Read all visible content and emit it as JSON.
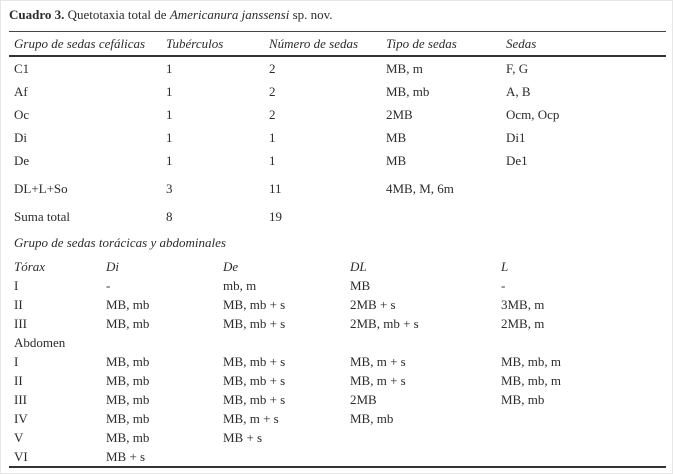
{
  "colors": {
    "text": "#2b2b2b",
    "rule": "#333333",
    "background": "#ffffff"
  },
  "caption": {
    "label": "Cuadro 3.",
    "text": " Quetotaxia total de ",
    "species": "Americanura janssensi",
    "suffix": " sp. nov."
  },
  "cephalic_table": {
    "headers": [
      "Grupo de sedas cefálicas",
      "Tubérculos",
      "Número de sedas",
      "Tipo de sedas",
      "Sedas"
    ],
    "rows": [
      {
        "cells": [
          "C1",
          "1",
          "2",
          "MB, m",
          "F, G"
        ]
      },
      {
        "cells": [
          "Af",
          "1",
          "2",
          "MB, mb",
          "A, B"
        ]
      },
      {
        "cells": [
          "Oc",
          "1",
          "2",
          "2MB",
          "Ocm, Ocp"
        ]
      },
      {
        "cells": [
          "Di",
          "1",
          "1",
          "MB",
          "Di1"
        ]
      },
      {
        "cells": [
          "De",
          "1",
          "1",
          "MB",
          "De1"
        ]
      },
      {
        "cells": [
          "DL+L+So",
          "3",
          "11",
          "4MB, M, 6m",
          ""
        ],
        "gap": true
      },
      {
        "cells": [
          "Suma total",
          "8",
          "19",
          "",
          ""
        ],
        "gap": true
      }
    ]
  },
  "section2_title": "Grupo de sedas torácicas y abdominales",
  "thoracic_abdominal_table": {
    "headers": [
      "Tórax",
      "Di",
      "De",
      "DL",
      "L"
    ],
    "rows": [
      {
        "cells": [
          "I",
          "-",
          "mb, m",
          "MB",
          "-"
        ]
      },
      {
        "cells": [
          "II",
          "MB, mb",
          "MB, mb + s",
          "2MB + s",
          "3MB, m"
        ]
      },
      {
        "cells": [
          "III",
          "MB, mb",
          "MB, mb + s",
          "2MB, mb + s",
          "2MB, m"
        ]
      },
      {
        "cells": [
          "Abdomen",
          "",
          "",
          "",
          ""
        ]
      },
      {
        "cells": [
          "I",
          "MB, mb",
          "MB, mb + s",
          "MB, m + s",
          "MB, mb, m"
        ]
      },
      {
        "cells": [
          "II",
          "MB, mb",
          "MB, mb + s",
          "MB, m + s",
          "MB, mb, m"
        ]
      },
      {
        "cells": [
          "III",
          "MB, mb",
          "MB, mb + s",
          "2MB",
          "MB, mb"
        ]
      },
      {
        "cells": [
          "IV",
          "MB, mb",
          "MB, m + s",
          "MB, mb",
          ""
        ]
      },
      {
        "cells": [
          "V",
          "MB, mb",
          "MB + s",
          "",
          ""
        ]
      },
      {
        "cells": [
          "VI",
          "MB + s",
          "",
          "",
          ""
        ]
      }
    ]
  }
}
